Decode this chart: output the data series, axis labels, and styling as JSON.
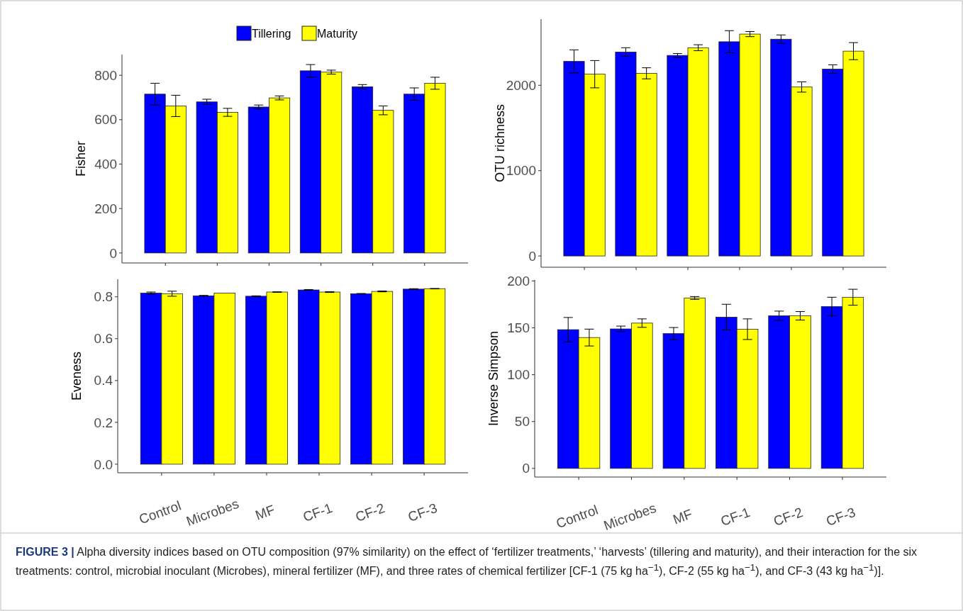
{
  "chart_data": [
    {
      "type": "bar",
      "ylabel": "Fisher",
      "categories": [
        null,
        null,
        null,
        null,
        null,
        null
      ],
      "ylim": [
        -45,
        893
      ],
      "yticks": [
        0,
        200,
        400,
        600,
        800
      ],
      "tick_labels": "y",
      "legend": "top",
      "grid": false,
      "series": [
        {
          "name": "Tillering",
          "color": "#0000ff",
          "values": [
            715,
            680,
            657,
            820,
            748,
            715
          ],
          "errors": [
            49,
            12,
            9,
            28,
            10,
            28
          ]
        },
        {
          "name": "Maturity",
          "color": "#ffff00",
          "values": [
            662,
            633,
            698,
            814,
            642,
            764
          ],
          "errors": [
            48,
            18,
            9,
            9,
            20,
            27
          ]
        }
      ]
    },
    {
      "type": "bar",
      "ylabel": "OTU richness",
      "categories": [
        null,
        null,
        null,
        null,
        null,
        null
      ],
      "ylim": [
        -132,
        2775
      ],
      "yticks": [
        0,
        1000,
        2000
      ],
      "tick_labels": "y",
      "grid": false,
      "series": [
        {
          "color": "#0000ff",
          "values": [
            2280,
            2390,
            2350,
            2510,
            2540,
            2190
          ],
          "errors": [
            135,
            50,
            22,
            130,
            50,
            50
          ]
        },
        {
          "color": "#ffff00",
          "values": [
            2130,
            2140,
            2440,
            2600,
            1980,
            2400
          ],
          "errors": [
            160,
            65,
            35,
            30,
            60,
            100
          ]
        }
      ]
    },
    {
      "type": "bar",
      "ylabel": "Eveness",
      "categories": [
        "Control",
        "Microbes",
        "MF",
        "CF-1",
        "CF-2",
        "CF-3"
      ],
      "ylim": [
        -0.041,
        0.884
      ],
      "yticks": [
        {
          "value": 0,
          "label": "0.0"
        },
        0.2,
        0.4,
        0.6,
        0.8
      ],
      "grid": false,
      "series": [
        {
          "color": "#0000ff",
          "values": [
            0.818,
            0.805,
            0.803,
            0.833,
            0.815,
            0.837
          ],
          "errors": [
            0.005,
            0.002,
            0.002,
            0.002,
            0.001,
            0.002
          ]
        },
        {
          "color": "#ffff00",
          "values": [
            0.815,
            0.818,
            0.823,
            0.823,
            0.826,
            0.839
          ],
          "errors": [
            0.012,
            null,
            0.001,
            0.002,
            0.002,
            0.001
          ]
        }
      ]
    },
    {
      "type": "bar",
      "ylabel": "Inverse Simpson",
      "categories": [
        "Control",
        "Microbes",
        "MF",
        "CF-1",
        "CF-2",
        "CF-3"
      ],
      "ylim": [
        -9.2,
        201
      ],
      "yticks": [
        0,
        50,
        100,
        150,
        200
      ],
      "grid": false,
      "annotations": [
        "FIGURE 3 |",
        "Alpha diversity indices based on OTU composition (97% similarity) on the effect of ‘fertilizer treatments,’ ‘harvests’ (tillering and maturity), and their interaction for the six treatments: control, microbial inoculant (Microbes), mineral fertilizer (MF), and three rates of chemical fertilizer [CF-1 (75 kg ha$^{−1}$), CF-2 (55 kg ha$^{−1}$), and CF-3 (43 kg ha$^{−1}$)]."
      ],
      "series": [
        {
          "color": "#0000ff",
          "values": [
            148,
            148.8,
            143.8,
            161.4,
            162.8,
            172.6
          ],
          "errors": [
            13,
            3,
            6.5,
            13.7,
            5,
            10
          ]
        },
        {
          "color": "#ffff00",
          "values": [
            139.6,
            155,
            181.8,
            148.5,
            162.8,
            182.6
          ],
          "errors": [
            9,
            4.5,
            1.5,
            11,
            4.5,
            8.5
          ]
        }
      ]
    }
  ]
}
